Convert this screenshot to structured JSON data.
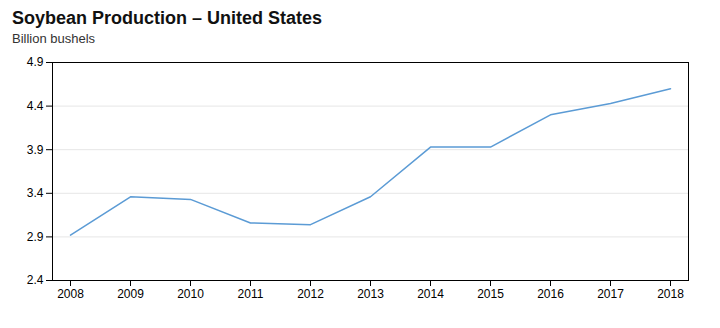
{
  "chart_data": {
    "type": "line",
    "title": "Soybean Production – United States",
    "subtitle": "Billion bushels",
    "x": [
      2008,
      2009,
      2010,
      2011,
      2012,
      2013,
      2014,
      2015,
      2016,
      2017,
      2018
    ],
    "values": [
      2.92,
      3.36,
      3.33,
      3.06,
      3.04,
      3.36,
      3.93,
      3.93,
      4.3,
      4.43,
      4.6
    ],
    "color": "#5b9bd5",
    "xlim": [
      2007.7,
      2018.3
    ],
    "xticks": [
      2008,
      2009,
      2010,
      2011,
      2012,
      2013,
      2014,
      2015,
      2016,
      2017,
      2018
    ],
    "ylim": [
      2.4,
      4.9
    ],
    "yticks": [
      2.4,
      2.9,
      3.4,
      3.9,
      4.4,
      4.9
    ],
    "grid": true
  }
}
